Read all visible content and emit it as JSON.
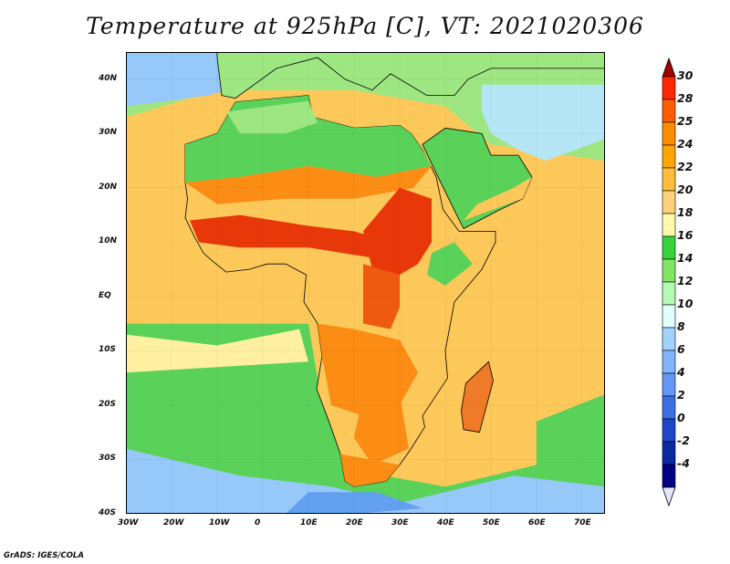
{
  "title": "Temperature at 925hPa [C], VT: 2021020306",
  "credit": "GrADS: IGES/COLA",
  "map": {
    "lon_labels": [
      "30W",
      "20W",
      "10W",
      "0",
      "10E",
      "20E",
      "30E",
      "40E",
      "50E",
      "60E",
      "70E"
    ],
    "lat_labels": [
      "40N",
      "30N",
      "20N",
      "10N",
      "EQ",
      "10S",
      "20S",
      "30S",
      "40S"
    ],
    "lon_range": [
      -30,
      75
    ],
    "lat_range": [
      -40,
      45
    ]
  },
  "colorbar": {
    "labels": [
      "30",
      "28",
      "25",
      "24",
      "22",
      "20",
      "18",
      "16",
      "14",
      "12",
      "10",
      "8",
      "6",
      "4",
      "2",
      "0",
      "-2",
      "-4"
    ],
    "colors": [
      "#fe2800",
      "#fe5e00",
      "#fe8c00",
      "#fea500",
      "#febe3c",
      "#fed278",
      "#fefaaa",
      "#37d23c",
      "#82e664",
      "#b4fab4",
      "#e1ffff",
      "#a0d2fe",
      "#82b4fe",
      "#6496f5",
      "#3c6ee6",
      "#1e46c8",
      "#0a28a0",
      "#000082"
    ],
    "top_arrow_color": "#a00000",
    "bottom_arrow_color": "#e6e6ff"
  },
  "palette": {
    "hot": "#e8380a",
    "warm": "#fb8c14",
    "mild": "#fdc85a",
    "pale": "#fef0a0",
    "green": "#5ad25a",
    "lightgreen": "#9ee682",
    "mint": "#c8f5c8",
    "sky": "#96c8fa",
    "blue": "#64a0f0"
  }
}
